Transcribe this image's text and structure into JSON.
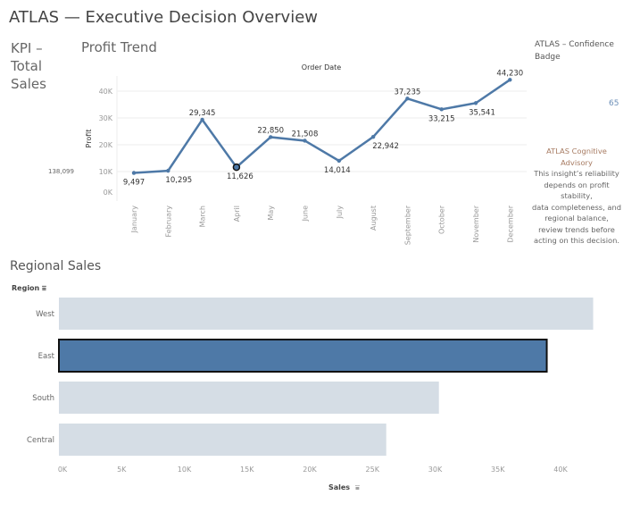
{
  "header": {
    "title": "ATLAS — Executive Decision Overview"
  },
  "kpi": {
    "title": "KPI – Total Sales",
    "value": "138,099"
  },
  "badge": {
    "title": "ATLAS – Confidence Badge",
    "value": "65"
  },
  "advisory": {
    "heading": "ATLAS Cognitive Advisory",
    "lines": [
      "This insight’s reliability depends on profit stability,",
      "data completeness, and regional balance,",
      "review trends before acting on this decision."
    ]
  },
  "profit_trend": {
    "title": "Profit Trend"
  },
  "regional_sales": {
    "title": "Regional Sales"
  },
  "colors": {
    "line": "#4e79a7",
    "bar": "#d5dde5",
    "bar_highlight": "#4e79a7"
  },
  "chart_data": [
    {
      "type": "line",
      "title": "Profit Trend",
      "xlabel": "Order Date",
      "ylabel": "Profit",
      "categories": [
        "January",
        "February",
        "March",
        "April",
        "May",
        "June",
        "July",
        "August",
        "September",
        "October",
        "November",
        "December"
      ],
      "values": [
        9497,
        10295,
        29345,
        11626,
        22850,
        21508,
        14014,
        22942,
        37235,
        33215,
        35541,
        44230
      ],
      "data_labels": [
        "9,497",
        "10,295",
        "29,345",
        "11,626",
        "22,850",
        "21,508",
        "14,014",
        "22,942",
        "37,235",
        "33,215",
        "35,541",
        "44,230"
      ],
      "highlighted": "April",
      "ylim": [
        0,
        45000
      ],
      "yticks": [
        "0K",
        "10K",
        "20K",
        "30K",
        "40K"
      ],
      "grid": true
    },
    {
      "type": "bar",
      "orientation": "horizontal",
      "title": "Regional Sales",
      "xlabel": "Sales",
      "ylabel": "Region",
      "categories": [
        "West",
        "East",
        "South",
        "Central"
      ],
      "values": [
        42600,
        38900,
        30300,
        26100
      ],
      "highlighted": "East",
      "xlim": [
        0,
        45000
      ],
      "xticks": [
        "0K",
        "5K",
        "10K",
        "15K",
        "20K",
        "25K",
        "30K",
        "35K",
        "40K"
      ],
      "grid": false
    }
  ]
}
